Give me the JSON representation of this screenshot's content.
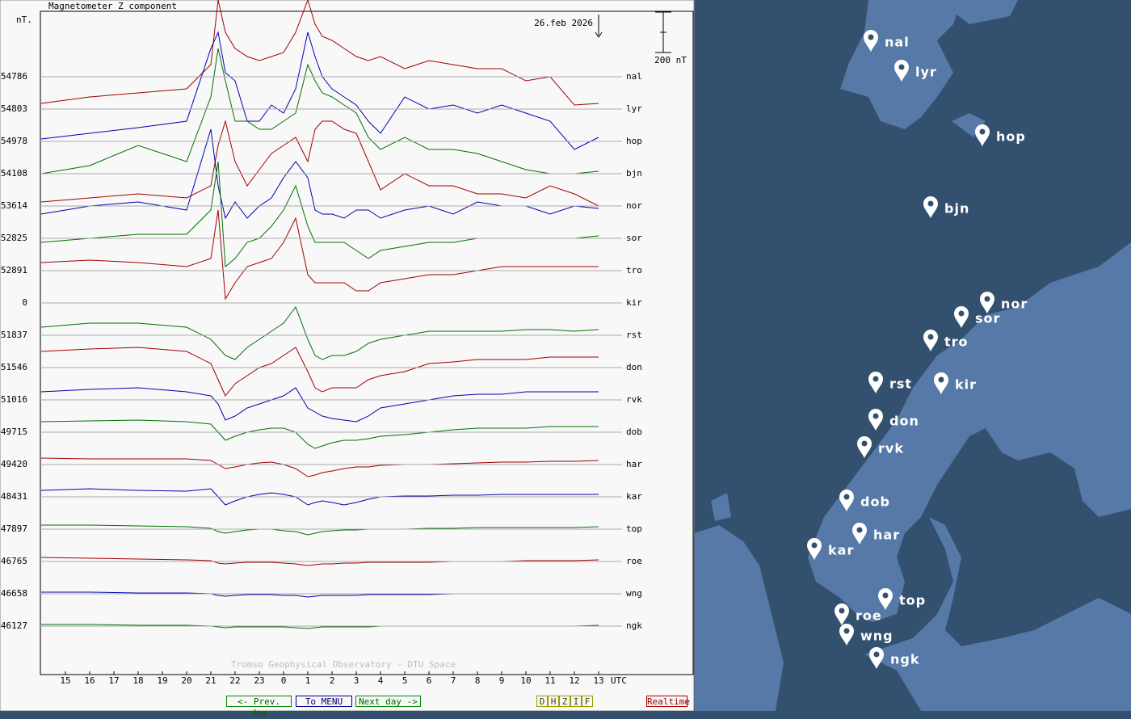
{
  "header": {
    "title": "Magnetometer Z component",
    "unit": "nT.",
    "date": "26.feb 2026",
    "scale_bar": {
      "label": "200 nT",
      "value": 200
    }
  },
  "chart_data": {
    "type": "line",
    "x_unit": "UTC",
    "watermark": "Tromso Geophysical Observatory - DTU Space",
    "x": [
      14,
      16,
      18,
      20,
      21,
      21.3,
      21.6,
      22,
      22.5,
      23,
      23.5,
      24,
      24.5,
      25,
      25.3,
      25.6,
      26,
      26.5,
      27,
      27.5,
      28,
      29,
      30,
      31,
      32,
      33,
      34,
      35,
      36,
      37
    ],
    "xlim": [
      14,
      40.9
    ],
    "xticks": [
      15,
      16,
      17,
      18,
      19,
      20,
      21,
      22,
      23,
      {
        "value": 24,
        "label": "0"
      },
      {
        "value": 25,
        "label": "1"
      },
      {
        "value": 26,
        "label": "2"
      },
      {
        "value": 27,
        "label": "3"
      },
      {
        "value": 28,
        "label": "4"
      },
      {
        "value": 29,
        "label": "5"
      },
      {
        "value": 30,
        "label": "6"
      },
      {
        "value": 31,
        "label": "7"
      },
      {
        "value": 32,
        "label": "8"
      },
      {
        "value": 33,
        "label": "9"
      },
      {
        "value": 34,
        "label": "10"
      },
      {
        "value": 35,
        "label": "11"
      },
      {
        "value": 36,
        "label": "12"
      },
      {
        "value": 37,
        "label": "13"
      }
    ],
    "series": [
      {
        "name": "nal",
        "baseline": 54786,
        "color": "#a00000",
        "values": [
          -132,
          -100,
          -80,
          -60,
          60,
          380,
          220,
          140,
          100,
          80,
          100,
          120,
          220,
          380,
          260,
          200,
          180,
          140,
          100,
          80,
          100,
          40,
          80,
          60,
          40,
          40,
          -20,
          0,
          -140,
          -132
        ]
      },
      {
        "name": "lyr",
        "baseline": 54803,
        "color": "#0000b0",
        "values": [
          -148,
          -120,
          -92,
          -60,
          300,
          380,
          180,
          140,
          -60,
          -60,
          20,
          -20,
          100,
          380,
          260,
          160,
          100,
          60,
          20,
          -60,
          -120,
          60,
          0,
          20,
          -20,
          20,
          -20,
          -60,
          -200,
          -140
        ]
      },
      {
        "name": "hop",
        "baseline": 54978,
        "color": "#007000",
        "values": [
          -160,
          -120,
          -20,
          -100,
          220,
          460,
          300,
          100,
          100,
          60,
          60,
          100,
          140,
          380,
          300,
          240,
          220,
          180,
          140,
          20,
          -40,
          20,
          -40,
          -40,
          -60,
          -100,
          -140,
          -160,
          -160,
          -148
        ]
      },
      {
        "name": "bjn",
        "baseline": 54108,
        "color": "#a00000",
        "values": [
          -140,
          -120,
          -100,
          -120,
          -60,
          140,
          260,
          60,
          -60,
          20,
          100,
          140,
          180,
          60,
          220,
          260,
          260,
          220,
          200,
          60,
          -80,
          0,
          -60,
          -60,
          -100,
          -100,
          -120,
          -60,
          -100,
          -160
        ]
      },
      {
        "name": "nor",
        "baseline": 53614,
        "color": "#0000b0",
        "values": [
          -40,
          0,
          20,
          -20,
          380,
          100,
          -60,
          20,
          -60,
          0,
          40,
          140,
          220,
          140,
          -20,
          -40,
          -40,
          -60,
          -20,
          -20,
          -60,
          -20,
          0,
          -40,
          20,
          0,
          0,
          -40,
          0,
          -12
        ]
      },
      {
        "name": "sor",
        "baseline": 52825,
        "color": "#007000",
        "values": [
          -20,
          0,
          20,
          20,
          140,
          380,
          -140,
          -100,
          -20,
          0,
          60,
          140,
          260,
          60,
          -20,
          -20,
          -20,
          -20,
          -60,
          -100,
          -60,
          -40,
          -20,
          -20,
          0,
          0,
          0,
          0,
          0,
          12
        ]
      },
      {
        "name": "tro",
        "baseline": 52891,
        "color": "#a00000",
        "values": [
          40,
          52,
          40,
          20,
          60,
          300,
          -140,
          -60,
          20,
          40,
          60,
          140,
          260,
          -20,
          -60,
          -60,
          -60,
          -60,
          -100,
          -100,
          -60,
          -40,
          -20,
          -20,
          0,
          20,
          20,
          20,
          20,
          20
        ]
      },
      {
        "name": "kir",
        "baseline": 0,
        "color": "#0000b0"
      },
      {
        "name": "rst",
        "baseline": 51837,
        "color": "#007000",
        "values": [
          40,
          60,
          60,
          40,
          -20,
          -60,
          -100,
          -120,
          -60,
          -20,
          20,
          60,
          140,
          -20,
          -100,
          -120,
          -100,
          -100,
          -80,
          -40,
          -20,
          0,
          20,
          20,
          20,
          20,
          28,
          28,
          20,
          28
        ]
      },
      {
        "name": "don",
        "baseline": 51546,
        "color": "#a00000",
        "values": [
          80,
          92,
          100,
          80,
          20,
          -60,
          -140,
          -80,
          -40,
          0,
          20,
          60,
          100,
          -20,
          -100,
          -120,
          -100,
          -100,
          -100,
          -60,
          -40,
          -20,
          20,
          28,
          40,
          40,
          40,
          52,
          52,
          52
        ]
      },
      {
        "name": "rvk",
        "baseline": 51016,
        "color": "#0000b0",
        "values": [
          40,
          52,
          60,
          40,
          20,
          -20,
          -100,
          -80,
          -40,
          -20,
          0,
          20,
          60,
          -40,
          -60,
          -80,
          -92,
          -100,
          -108,
          -80,
          -40,
          -20,
          0,
          20,
          28,
          28,
          40,
          40,
          40,
          40
        ]
      },
      {
        "name": "dob",
        "baseline": 49715,
        "color": "#007000",
        "values": [
          52,
          56,
          60,
          52,
          40,
          0,
          -40,
          -20,
          0,
          12,
          20,
          20,
          0,
          -60,
          -80,
          -68,
          -52,
          -40,
          -40,
          -32,
          -20,
          -12,
          0,
          12,
          20,
          20,
          20,
          28,
          28,
          28
        ]
      },
      {
        "name": "har",
        "baseline": 49420,
        "color": "#a00000",
        "values": [
          32,
          28,
          28,
          28,
          20,
          0,
          -20,
          -12,
          0,
          8,
          12,
          0,
          -20,
          -60,
          -52,
          -40,
          -32,
          -20,
          -12,
          -12,
          -4,
          0,
          0,
          4,
          8,
          12,
          12,
          16,
          16,
          20
        ]
      },
      {
        "name": "kar",
        "baseline": 48431,
        "color": "#0000b0",
        "values": [
          32,
          40,
          32,
          28,
          40,
          0,
          -40,
          -20,
          0,
          12,
          20,
          12,
          0,
          -40,
          -28,
          -20,
          -28,
          -40,
          -28,
          -12,
          0,
          4,
          4,
          8,
          8,
          12,
          12,
          12,
          12,
          12
        ]
      },
      {
        "name": "top",
        "baseline": 47897,
        "color": "#007000",
        "values": [
          20,
          20,
          16,
          12,
          4,
          -12,
          -20,
          -12,
          -4,
          0,
          0,
          -8,
          -12,
          -28,
          -20,
          -12,
          -8,
          -4,
          -4,
          0,
          0,
          0,
          4,
          4,
          8,
          8,
          8,
          8,
          8,
          12
        ]
      },
      {
        "name": "roe",
        "baseline": 46765,
        "color": "#a00000",
        "values": [
          20,
          16,
          12,
          8,
          4,
          -8,
          -12,
          -8,
          -4,
          -4,
          -4,
          -8,
          -12,
          -20,
          -16,
          -12,
          -12,
          -8,
          -8,
          -4,
          -4,
          -4,
          -4,
          0,
          0,
          0,
          4,
          4,
          4,
          8
        ]
      },
      {
        "name": "wng",
        "baseline": 46658,
        "color": "#0000b0",
        "values": [
          8,
          8,
          4,
          4,
          0,
          -8,
          -12,
          -8,
          -4,
          -4,
          -4,
          -8,
          -8,
          -16,
          -12,
          -8,
          -8,
          -8,
          -8,
          -4,
          -4,
          -4,
          -4,
          0,
          0,
          0,
          0,
          0,
          0,
          0
        ]
      },
      {
        "name": "ngk",
        "baseline": 46127,
        "color": "#007000",
        "values": [
          8,
          8,
          4,
          4,
          0,
          -4,
          -8,
          -4,
          -4,
          -4,
          -4,
          -4,
          -8,
          -12,
          -8,
          -4,
          -4,
          -4,
          -4,
          -4,
          0,
          0,
          0,
          0,
          0,
          0,
          0,
          0,
          0,
          4
        ]
      }
    ]
  },
  "nav": {
    "buttons": [
      "<- Prev. day",
      "To MENU",
      "Next day ->"
    ],
    "components": [
      "D",
      "H",
      "Z",
      "I",
      "F"
    ],
    "realtime": "Realtime"
  },
  "map": {
    "markers": [
      "nal",
      "lyr",
      "hop",
      "bjn",
      "nor",
      "sor",
      "tro",
      "rst",
      "kir",
      "don",
      "rvk",
      "dob",
      "har",
      "kar",
      "top",
      "roe",
      "wng",
      "ngk"
    ]
  }
}
